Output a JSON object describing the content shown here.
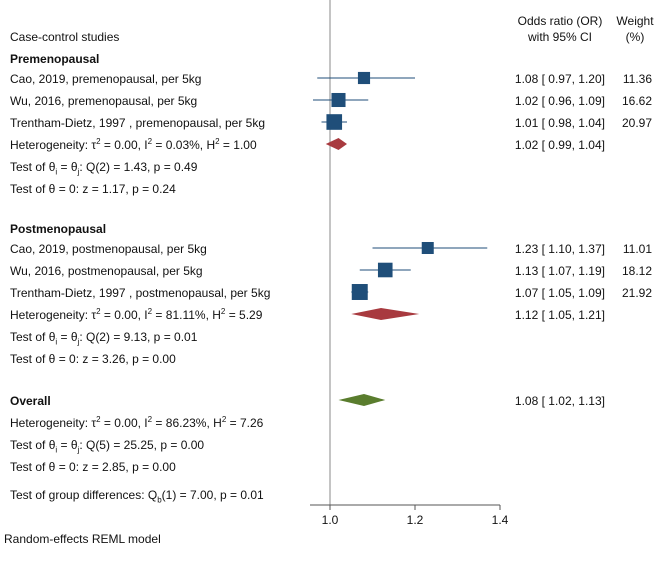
{
  "chart_data": {
    "type": "forest",
    "model_note": "Random-effects REML model",
    "columns": {
      "study": "Case-control studies",
      "or_line1": "Odds ratio (OR)",
      "or_line2": "with 95% CI",
      "weight_line1": "Weight",
      "weight_line2": "(%)"
    },
    "xaxis": {
      "min": 0.95,
      "max": 1.4,
      "ticks": [
        1.0,
        1.2,
        1.4
      ],
      "tick_labels": [
        "1.0",
        "1.2",
        "1.4"
      ],
      "null_line": 1.0
    },
    "groups": [
      {
        "label": "Premenopausal",
        "studies": [
          {
            "label": "Cao, 2019, premenopausal, per 5kg",
            "or": 1.08,
            "lo": 0.97,
            "hi": 1.2,
            "text": "1.08 [ 0.97,  1.20]",
            "weight": 11.36,
            "weight_text": "11.36"
          },
          {
            "label": "Wu, 2016, premenopausal, per 5kg",
            "or": 1.02,
            "lo": 0.96,
            "hi": 1.09,
            "text": "1.02 [ 0.96,  1.09]",
            "weight": 16.62,
            "weight_text": "16.62"
          },
          {
            "label": "Trentham-Dietz, 1997 , premenopausal, per 5kg",
            "or": 1.01,
            "lo": 0.98,
            "hi": 1.04,
            "text": "1.01 [ 0.98,  1.04]",
            "weight": 20.97,
            "weight_text": "20.97"
          }
        ],
        "pooled": {
          "or": 1.02,
          "lo": 0.99,
          "hi": 1.04,
          "text": "1.02 [ 0.99,  1.04]",
          "color": "#a83a3f"
        },
        "heterogeneity": {
          "prefix": "Heterogeneity: ",
          "tau": "τ",
          "tau_val": " = 0.00, I",
          "i_val": " = 0.03%, H",
          "h_val": " = 1.00"
        },
        "test_homog": {
          "prefix": "Test of ",
          "theta": "θ",
          "eq": " = ",
          "sub": "j",
          "rest": ": Q(2) = 1.43, p = 0.49"
        },
        "test_zero": "Test of θ = 0: z = 1.17, p = 0.24"
      },
      {
        "label": "Postmenopausal",
        "studies": [
          {
            "label": "Cao, 2019, postmenopausal, per 5kg",
            "or": 1.23,
            "lo": 1.1,
            "hi": 1.37,
            "text": "1.23 [ 1.10,  1.37]",
            "weight": 11.01,
            "weight_text": "11.01"
          },
          {
            "label": "Wu, 2016, postmenopausal, per 5kg",
            "or": 1.13,
            "lo": 1.07,
            "hi": 1.19,
            "text": "1.13 [ 1.07,  1.19]",
            "weight": 18.12,
            "weight_text": "18.12"
          },
          {
            "label": "Trentham-Dietz, 1997 , postmenopausal, per 5kg",
            "or": 1.07,
            "lo": 1.05,
            "hi": 1.09,
            "text": "1.07 [ 1.05,  1.09]",
            "weight": 21.92,
            "weight_text": "21.92"
          }
        ],
        "pooled": {
          "or": 1.12,
          "lo": 1.05,
          "hi": 1.21,
          "text": "1.12 [ 1.05,  1.21]",
          "color": "#a83a3f"
        },
        "heterogeneity": {
          "prefix": "Heterogeneity: ",
          "tau": "τ",
          "tau_val": " = 0.00, I",
          "i_val": " = 81.11%, H",
          "h_val": " = 5.29"
        },
        "test_homog": {
          "prefix": "Test of ",
          "theta": "θ",
          "eq": " = ",
          "sub": "j",
          "rest": ": Q(2) = 9.13, p = 0.01"
        },
        "test_zero": "Test of θ = 0: z = 3.26, p = 0.00"
      }
    ],
    "overall": {
      "label": "Overall",
      "or": 1.08,
      "lo": 1.02,
      "hi": 1.13,
      "text": "1.08 [ 1.02,  1.13]",
      "color": "#5a7d2e",
      "heterogeneity": {
        "prefix": "Heterogeneity: ",
        "tau": "τ",
        "tau_val": " = 0.00, I",
        "i_val": " = 86.23%, H",
        "h_val": " = 7.26"
      },
      "test_homog": {
        "prefix": "Test of ",
        "theta": "θ",
        "eq": " = ",
        "sub": "j",
        "rest": ": Q(5) = 25.25, p = 0.00"
      },
      "test_zero": "Test of θ = 0: z = 2.85, p = 0.00",
      "group_diff": {
        "prefix": "Test of group differences: Q",
        "sub": "b",
        "rest": "(1) = 7.00, p = 0.01"
      }
    },
    "colors": {
      "square": "#1f4e79",
      "ci_line": "#1f4e79",
      "null_line": "#888888",
      "axis": "#555555"
    }
  }
}
